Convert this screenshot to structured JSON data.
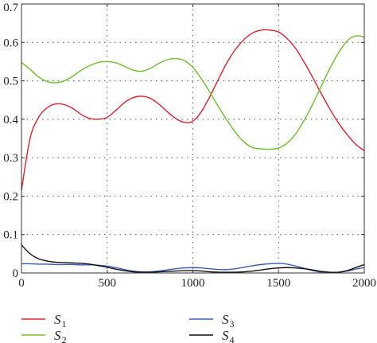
{
  "chart_data": {
    "type": "line",
    "title": "",
    "xlabel": "",
    "ylabel": "",
    "xlim": [
      0,
      2000
    ],
    "ylim": [
      0,
      0.7
    ],
    "xticks": [
      0,
      500,
      1000,
      1500,
      2000
    ],
    "yticks": [
      0,
      0.1,
      0.2,
      0.3,
      0.4,
      0.5,
      0.6,
      0.7
    ],
    "x_tick_labels": [
      "0",
      "500",
      "1000",
      "1500",
      "2000"
    ],
    "y_tick_labels": [
      "0",
      "0.1",
      "0.2",
      "0.3",
      "0.4",
      "0.5",
      "0.6",
      "0.7"
    ],
    "grid": true,
    "legend_position": "bottom, outside plot area, two columns",
    "series": [
      {
        "name": "S",
        "subscript": "1",
        "color": "#e0202a",
        "x": [
          0,
          50,
          100,
          150,
          200,
          250,
          300,
          350,
          400,
          450,
          500,
          550,
          600,
          650,
          700,
          750,
          800,
          850,
          900,
          950,
          1000,
          1050,
          1100,
          1150,
          1200,
          1250,
          1300,
          1350,
          1400,
          1450,
          1500,
          1550,
          1600,
          1650,
          1700,
          1750,
          1800,
          1850,
          1900,
          1950,
          2000
        ],
        "y": [
          0.215,
          0.35,
          0.405,
          0.43,
          0.44,
          0.438,
          0.428,
          0.412,
          0.402,
          0.4,
          0.405,
          0.423,
          0.443,
          0.456,
          0.46,
          0.455,
          0.44,
          0.42,
          0.402,
          0.392,
          0.395,
          0.42,
          0.46,
          0.505,
          0.548,
          0.583,
          0.608,
          0.625,
          0.632,
          0.632,
          0.627,
          0.61,
          0.584,
          0.548,
          0.508,
          0.466,
          0.426,
          0.39,
          0.36,
          0.335,
          0.318
        ]
      },
      {
        "name": "S",
        "subscript": "2",
        "color": "#6cbf2a",
        "x": [
          0,
          50,
          100,
          150,
          200,
          250,
          300,
          350,
          400,
          450,
          500,
          550,
          600,
          650,
          700,
          750,
          800,
          850,
          900,
          950,
          1000,
          1050,
          1100,
          1150,
          1200,
          1250,
          1300,
          1350,
          1400,
          1450,
          1500,
          1550,
          1600,
          1650,
          1700,
          1750,
          1800,
          1850,
          1900,
          1950,
          2000
        ],
        "y": [
          0.548,
          0.53,
          0.51,
          0.498,
          0.495,
          0.5,
          0.512,
          0.528,
          0.54,
          0.548,
          0.55,
          0.547,
          0.538,
          0.528,
          0.525,
          0.532,
          0.545,
          0.555,
          0.558,
          0.553,
          0.535,
          0.505,
          0.47,
          0.432,
          0.397,
          0.365,
          0.34,
          0.326,
          0.323,
          0.322,
          0.325,
          0.338,
          0.362,
          0.398,
          0.44,
          0.487,
          0.533,
          0.573,
          0.604,
          0.617,
          0.614
        ]
      },
      {
        "name": "S",
        "subscript": "3",
        "color": "#3a5db8",
        "x": [
          0,
          50,
          100,
          150,
          200,
          250,
          300,
          350,
          400,
          450,
          500,
          550,
          600,
          650,
          700,
          750,
          800,
          850,
          900,
          950,
          1000,
          1050,
          1100,
          1150,
          1200,
          1250,
          1300,
          1350,
          1400,
          1450,
          1500,
          1550,
          1600,
          1650,
          1700,
          1750,
          1800,
          1850,
          1900,
          1950,
          2000
        ],
        "y": [
          0.024,
          0.024,
          0.023,
          0.023,
          0.022,
          0.022,
          0.022,
          0.021,
          0.021,
          0.02,
          0.018,
          0.014,
          0.009,
          0.005,
          0.003,
          0.003,
          0.005,
          0.008,
          0.011,
          0.013,
          0.014,
          0.013,
          0.011,
          0.009,
          0.009,
          0.011,
          0.015,
          0.019,
          0.022,
          0.024,
          0.025,
          0.023,
          0.018,
          0.012,
          0.006,
          0.002,
          0.001,
          0.002,
          0.005,
          0.01,
          0.014
        ]
      },
      {
        "name": "S",
        "subscript": "4",
        "color": "#111111",
        "x": [
          0,
          50,
          100,
          150,
          200,
          250,
          300,
          350,
          400,
          450,
          500,
          550,
          600,
          650,
          700,
          750,
          800,
          850,
          900,
          950,
          1000,
          1050,
          1100,
          1150,
          1200,
          1250,
          1300,
          1350,
          1400,
          1450,
          1500,
          1550,
          1600,
          1650,
          1700,
          1750,
          1800,
          1850,
          1900,
          1950,
          2000
        ],
        "y": [
          0.073,
          0.05,
          0.037,
          0.031,
          0.028,
          0.027,
          0.026,
          0.025,
          0.023,
          0.019,
          0.015,
          0.01,
          0.006,
          0.003,
          0.002,
          0.002,
          0.003,
          0.004,
          0.005,
          0.006,
          0.006,
          0.005,
          0.003,
          0.002,
          0.002,
          0.002,
          0.003,
          0.005,
          0.008,
          0.011,
          0.013,
          0.014,
          0.013,
          0.011,
          0.008,
          0.004,
          0.002,
          0.002,
          0.006,
          0.014,
          0.022
        ]
      }
    ]
  }
}
